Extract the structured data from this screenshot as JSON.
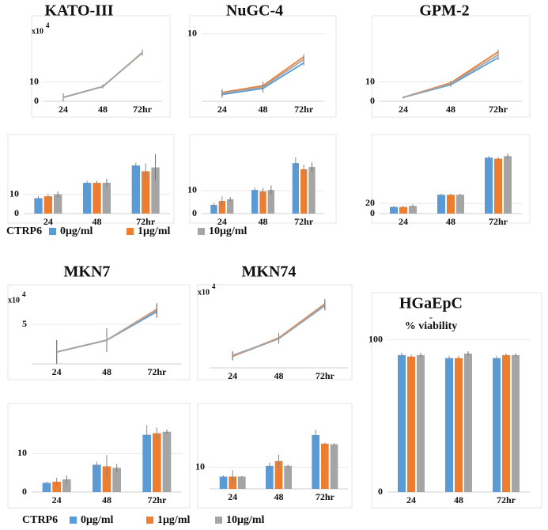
{
  "chart_data": [
    {
      "type": "line",
      "title": "KATO-III",
      "y_unit": "x10",
      "y_unit_power": "4",
      "categories": [
        "24",
        "48",
        "72hr"
      ],
      "ylim": [
        0,
        40
      ],
      "yticks": [
        0,
        10
      ],
      "series": [
        {
          "color": "#5b9bd5",
          "values": [
            2,
            7.6,
            25
          ],
          "errors": [
            2,
            1,
            1.5
          ]
        },
        {
          "color": "#ed7d31",
          "values": [
            2,
            7.6,
            25
          ],
          "errors": [
            2,
            1,
            1.5
          ]
        },
        {
          "color": "#a5a5a5",
          "values": [
            2,
            7.6,
            25.2
          ],
          "errors": [
            2,
            1,
            1.5
          ]
        }
      ]
    },
    {
      "type": "line",
      "title": "NuGC-4",
      "categories": [
        "24",
        "48",
        "72hr"
      ],
      "ylim": [
        0,
        11.5
      ],
      "yticks": [
        10
      ],
      "series": [
        {
          "color": "#5b9bd5",
          "values": [
            1,
            1.9,
            5.7
          ],
          "errors": [
            0.5,
            0.6,
            0.4
          ]
        },
        {
          "color": "#ed7d31",
          "values": [
            1.3,
            2.3,
            6.6
          ],
          "errors": [
            0.5,
            0.6,
            0.4
          ]
        },
        {
          "color": "#a5a5a5",
          "values": [
            1.2,
            2.1,
            6.2
          ],
          "errors": [
            0.5,
            0.6,
            0.4
          ]
        }
      ]
    },
    {
      "type": "line",
      "title": "GPM-2",
      "categories": [
        "24",
        "48",
        "72hr"
      ],
      "ylim": [
        0,
        40
      ],
      "yticks": [
        0,
        10
      ],
      "series": [
        {
          "color": "#5b9bd5",
          "values": [
            2,
            8.5,
            22.5
          ],
          "errors": [
            0.6,
            1,
            1.2
          ]
        },
        {
          "color": "#ed7d31",
          "values": [
            2,
            9.5,
            25.5
          ],
          "errors": [
            0.6,
            1,
            1.2
          ]
        },
        {
          "color": "#a5a5a5",
          "values": [
            2,
            9,
            24
          ],
          "errors": [
            0.6,
            1,
            1.2
          ]
        }
      ]
    },
    {
      "type": "bar",
      "categories": [
        "24",
        "48",
        "72hr"
      ],
      "ylim": [
        0,
        37
      ],
      "yticks": [
        0,
        10
      ],
      "series": [
        {
          "color": "#5b9bd5",
          "values": [
            8,
            16,
            25
          ],
          "errors": [
            1,
            1,
            1.5
          ]
        },
        {
          "color": "#ed7d31",
          "values": [
            9,
            16,
            22
          ],
          "errors": [
            1,
            1,
            4
          ]
        },
        {
          "color": "#a5a5a5",
          "values": [
            10,
            16,
            24
          ],
          "errors": [
            1.5,
            2,
            7
          ]
        }
      ]
    },
    {
      "type": "bar",
      "categories": [
        "24",
        "48",
        "72hr"
      ],
      "ylim": [
        0,
        31
      ],
      "yticks": [
        0,
        10
      ],
      "series": [
        {
          "color": "#5b9bd5",
          "values": [
            3.8,
            10.3,
            22
          ],
          "errors": [
            1,
            1,
            2.5
          ]
        },
        {
          "color": "#ed7d31",
          "values": [
            5.5,
            9.7,
            19.3
          ],
          "errors": [
            2,
            1.5,
            2
          ]
        },
        {
          "color": "#a5a5a5",
          "values": [
            6.2,
            10.3,
            20.3
          ],
          "errors": [
            1,
            2,
            2
          ]
        }
      ]
    },
    {
      "type": "bar",
      "categories": [
        "24",
        "48",
        "72hr"
      ],
      "ylim": [
        0,
        140
      ],
      "yticks": [
        0,
        20
      ],
      "series": [
        {
          "color": "#5b9bd5",
          "values": [
            13,
            37,
            110
          ],
          "errors": [
            2,
            2,
            3
          ]
        },
        {
          "color": "#ed7d31",
          "values": [
            13,
            37,
            108
          ],
          "errors": [
            2,
            2,
            3
          ]
        },
        {
          "color": "#a5a5a5",
          "values": [
            15,
            37,
            113
          ],
          "errors": [
            3,
            2,
            5
          ]
        }
      ]
    },
    {
      "type": "line",
      "title": "MKN7",
      "y_unit": "x10",
      "y_unit_power": "4",
      "categories": [
        "24",
        "48",
        "72hr"
      ],
      "ylim": [
        0,
        9
      ],
      "yticks": [
        5
      ],
      "series": [
        {
          "color": "#5b9bd5",
          "values": [
            1.5,
            3,
            6.6
          ],
          "errors": [
            1.5,
            1.5,
            0.8
          ]
        },
        {
          "color": "#ed7d31",
          "values": [
            1.5,
            3,
            6.9
          ],
          "errors": [
            1.5,
            1.5,
            0.8
          ]
        },
        {
          "color": "#a5a5a5",
          "values": [
            1.5,
            3,
            6.8
          ],
          "errors": [
            1.5,
            1.5,
            0.8
          ]
        }
      ]
    },
    {
      "type": "line",
      "title": "MKN74",
      "y_unit": "x10",
      "y_unit_power": "4",
      "categories": [
        "24",
        "48",
        "72hr"
      ],
      "ylim": [
        0,
        10
      ],
      "series": [
        {
          "color": "#5b9bd5",
          "values": [
            1.4,
            3.5,
            7.5
          ],
          "errors": [
            0.5,
            0.6,
            0.6
          ]
        },
        {
          "color": "#ed7d31",
          "values": [
            1.4,
            3.6,
            7.7
          ],
          "errors": [
            0.5,
            0.6,
            0.6
          ]
        },
        {
          "color": "#a5a5a5",
          "values": [
            1.5,
            3.5,
            7.6
          ],
          "errors": [
            0.5,
            0.6,
            0.6
          ]
        }
      ]
    },
    {
      "type": "bar",
      "categories": [
        "24",
        "48",
        "72hr"
      ],
      "ylim": [
        0,
        21
      ],
      "yticks": [
        0,
        10
      ],
      "series": [
        {
          "color": "#5b9bd5",
          "values": [
            2.4,
            7.1,
            14.9
          ],
          "errors": [
            0.3,
            0.8,
            2.5
          ]
        },
        {
          "color": "#ed7d31",
          "values": [
            2.7,
            6.7,
            15.3
          ],
          "errors": [
            1,
            3,
            1.5
          ]
        },
        {
          "color": "#a5a5a5",
          "values": [
            3.3,
            6.3,
            15.7
          ],
          "errors": [
            1,
            1,
            0.6
          ]
        }
      ]
    },
    {
      "type": "bar",
      "categories": [
        "24",
        "48",
        "72hr"
      ],
      "ylim": [
        0,
        36
      ],
      "yticks": [
        10
      ],
      "series": [
        {
          "color": "#5b9bd5",
          "values": [
            5.7,
            10.7,
            25
          ],
          "errors": [
            0.5,
            1.5,
            2.5
          ]
        },
        {
          "color": "#ed7d31",
          "values": [
            5.7,
            12.9,
            21
          ],
          "errors": [
            3,
            3,
            0.5
          ]
        },
        {
          "color": "#a5a5a5",
          "values": [
            5.7,
            10.7,
            20.7
          ],
          "errors": [
            0.3,
            0.5,
            0.5
          ]
        }
      ]
    },
    {
      "type": "bar",
      "title": "HGaEpC",
      "annotation": "-",
      "subtitle": "% viability",
      "categories": [
        "24",
        "48",
        "72hr"
      ],
      "ylim": [
        0,
        105
      ],
      "yticks": [
        0,
        100
      ],
      "series": [
        {
          "color": "#5b9bd5",
          "values": [
            90,
            88,
            88
          ],
          "errors": [
            1.5,
            1.5,
            1.5
          ]
        },
        {
          "color": "#ed7d31",
          "values": [
            89,
            88,
            90
          ],
          "errors": [
            1.5,
            1.5,
            1
          ]
        },
        {
          "color": "#a5a5a5",
          "values": [
            90,
            91,
            90
          ],
          "errors": [
            1.5,
            1.5,
            1
          ]
        }
      ]
    }
  ],
  "legend": {
    "title": "CTRP6",
    "entries": [
      {
        "name": "0μg/ml",
        "color": "#5b9bd5"
      },
      {
        "name": "1μg/ml",
        "color": "#ed7d31"
      },
      {
        "name": "10μg/ml",
        "color": "#a5a5a5"
      }
    ]
  }
}
